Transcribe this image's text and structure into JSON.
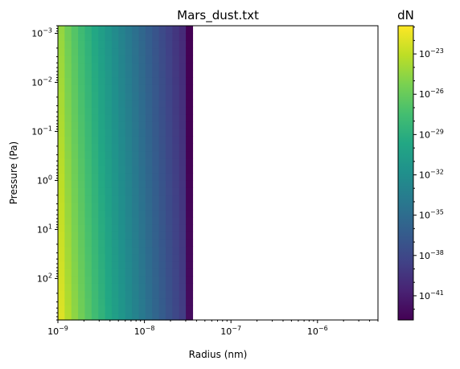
{
  "chart_data": {
    "type": "heatmap",
    "title": "Mars_dust.txt",
    "xlabel": "Radius (nm)",
    "ylabel": "Pressure (Pa)",
    "x_scale": "log",
    "y_scale": "log",
    "y_inverted": true,
    "xlim": [
      1e-09,
      5e-06
    ],
    "ylim": [
      700,
      0.0007
    ],
    "x_ticks": [
      {
        "value": 1e-09,
        "mantissa": "10",
        "exp": "−9"
      },
      {
        "value": 1e-08,
        "mantissa": "10",
        "exp": "−8"
      },
      {
        "value": 1e-07,
        "mantissa": "10",
        "exp": "−7"
      },
      {
        "value": 1e-06,
        "mantissa": "10",
        "exp": "−6"
      }
    ],
    "y_ticks": [
      {
        "value": 0.001,
        "mantissa": "10",
        "exp": "−3"
      },
      {
        "value": 0.01,
        "mantissa": "10",
        "exp": "−2"
      },
      {
        "value": 0.1,
        "mantissa": "10",
        "exp": "−1"
      },
      {
        "value": 1,
        "mantissa": "10",
        "exp": "0"
      },
      {
        "value": 10,
        "mantissa": "10",
        "exp": "1"
      },
      {
        "value": 100,
        "mantissa": "10",
        "exp": "2"
      }
    ],
    "data_extent": {
      "radius_min": 1e-09,
      "radius_max": 3.6e-08,
      "pressure_top": 0.0007,
      "pressure_bottom": 700,
      "n_radius_bins": 20,
      "n_pressure_bins": 40
    },
    "field_description": "log10(dN) decreases with radius; slightly lower at low pressure",
    "log10_dN_at_smallest_radius_bottom": -22.0,
    "log10_dN_at_smallest_radius_top": -24.4,
    "log10_dN_at_largest_radius_bottom": -39.6,
    "log10_dN_at_largest_radius_top": -40.8,
    "colorbar": {
      "label": "dN",
      "scale": "log",
      "colormap": "viridis",
      "range_log10": [
        -42.8,
        -20.9
      ],
      "ticks": [
        {
          "log10": -23,
          "mantissa": "10",
          "exp": "−23"
        },
        {
          "log10": -26,
          "mantissa": "10",
          "exp": "−26"
        },
        {
          "log10": -29,
          "mantissa": "10",
          "exp": "−29"
        },
        {
          "log10": -32,
          "mantissa": "10",
          "exp": "−32"
        },
        {
          "log10": -35,
          "mantissa": "10",
          "exp": "−35"
        },
        {
          "log10": -38,
          "mantissa": "10",
          "exp": "−38"
        },
        {
          "log10": -41,
          "mantissa": "10",
          "exp": "−41"
        }
      ]
    },
    "grid": false
  }
}
